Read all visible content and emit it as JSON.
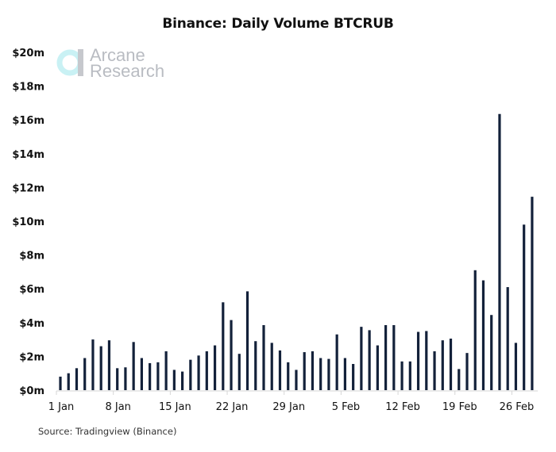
{
  "chart_data": {
    "type": "bar",
    "title": "Binance: Daily Volume BTCRUB",
    "xlabel": "",
    "ylabel": "",
    "ylim": [
      0,
      20
    ],
    "y_unit": "$m",
    "y_ticks": [
      0,
      2,
      4,
      6,
      8,
      10,
      12,
      14,
      16,
      18,
      20
    ],
    "y_tick_labels": [
      "$0m",
      "$2m",
      "$4m",
      "$6m",
      "$8m",
      "$10m",
      "$12m",
      "$14m",
      "$16m",
      "$18m",
      "$20m"
    ],
    "x_tick_labels": [
      "1 Jan",
      "8 Jan",
      "15 Jan",
      "22 Jan",
      "29 Jan",
      "5 Feb",
      "12 Feb",
      "19 Feb",
      "26 Feb"
    ],
    "x_tick_days": [
      1,
      8,
      15,
      22,
      29,
      36,
      43,
      50,
      57
    ],
    "grid": false,
    "bar_color": "#13213a",
    "series": [
      {
        "name": "Daily Volume BTCRUB",
        "values": [
          0.8,
          1.0,
          1.3,
          1.9,
          3.0,
          2.6,
          2.95,
          1.3,
          1.35,
          2.85,
          1.9,
          1.6,
          1.65,
          2.3,
          1.2,
          1.1,
          1.8,
          2.05,
          2.3,
          2.65,
          5.2,
          4.15,
          2.15,
          5.85,
          2.9,
          3.85,
          2.8,
          2.35,
          1.65,
          1.2,
          2.25,
          2.3,
          1.9,
          1.85,
          3.3,
          1.9,
          1.55,
          3.75,
          3.55,
          2.65,
          3.85,
          3.85,
          1.7,
          1.7,
          3.45,
          3.5,
          2.3,
          2.95,
          3.05,
          1.25,
          2.2,
          7.1,
          6.5,
          4.45,
          16.35,
          6.1,
          2.8,
          9.8,
          11.45
        ]
      }
    ]
  },
  "watermark": {
    "line1": "Arcane",
    "line2": "Research",
    "ring_color": "#c9f1f4",
    "bar_color": "#c6c8cd"
  },
  "source": "Source: Tradingview (Binance)"
}
